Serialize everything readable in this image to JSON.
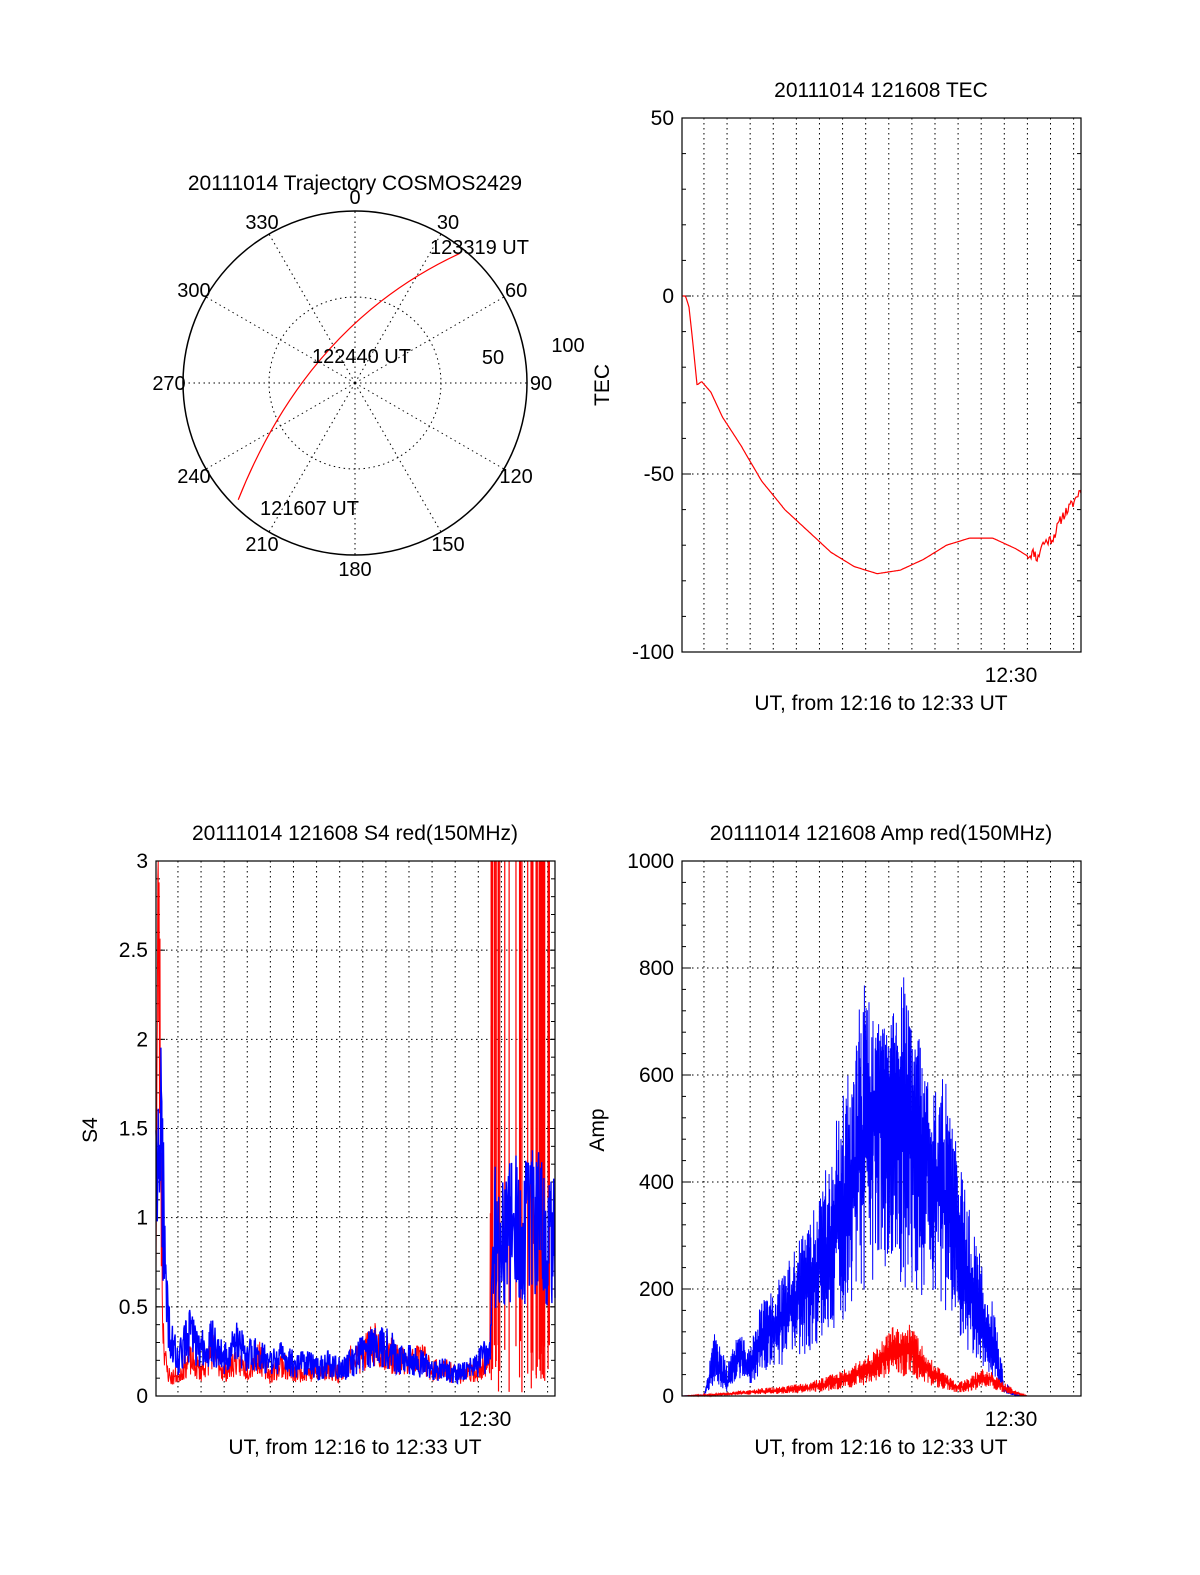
{
  "page": {
    "background": "#ffffff"
  },
  "colors": {
    "red": "#ff0000",
    "blue": "#0000ff",
    "axes": "#000000"
  },
  "polar": {
    "title": "20111014 Trajectory COSMOS2429",
    "angle_labels": [
      "0",
      "30",
      "60",
      "90",
      "120",
      "150",
      "180",
      "210",
      "240",
      "270",
      "300",
      "330"
    ],
    "angle_values": [
      0,
      30,
      60,
      90,
      120,
      150,
      180,
      210,
      240,
      270,
      300,
      330
    ],
    "radial_labels": [
      "50",
      "100"
    ],
    "radial_values": [
      50,
      100
    ],
    "time_labels": [
      "123319 UT",
      "122440 UT",
      "121607 UT"
    ],
    "trajectory": {
      "start": {
        "az": -135,
        "r": 96
      },
      "control": {
        "az": -38,
        "r": 44
      },
      "end": {
        "az": 39,
        "r": 97
      }
    }
  },
  "chart_data": [
    {
      "type": "line",
      "title": "20111014 121608 TEC",
      "xlabel": "UT, from 12:16 to 12:33 UT",
      "ylabel": "TEC",
      "ylim": [
        -100,
        50
      ],
      "yticks": [
        -100,
        -50,
        0,
        50
      ],
      "ytick_labels": [
        "-100",
        "-50",
        "0",
        "50"
      ],
      "xlim_minutes": [
        16.05,
        33.32
      ],
      "xticks": [
        30
      ],
      "xtick_labels": [
        "12:30"
      ],
      "grid": true,
      "series": [
        {
          "color": "#ff0000",
          "x": [
            16.05,
            16.2,
            16.35,
            16.5,
            16.7,
            16.9,
            17.3,
            17.8,
            18.6,
            19.5,
            20.5,
            21.5,
            22.5,
            23.5,
            24.5,
            25.5,
            26.5,
            27.5,
            28.5,
            29.5,
            30.5,
            31.0,
            31.3,
            31.45,
            31.6,
            31.8,
            32.1,
            32.5,
            33.0,
            33.32
          ],
          "y": [
            0,
            0,
            -3,
            -12,
            -25,
            -24,
            -27,
            -34,
            -42,
            -52,
            -60,
            -66,
            -72,
            -76,
            -78,
            -77,
            -74,
            -70,
            -68,
            -68,
            -71,
            -73,
            -72,
            -74,
            -70,
            -69,
            -68,
            -62,
            -58,
            -54
          ]
        }
      ]
    },
    {
      "type": "line",
      "title": "20111014 121608 S4 red(150MHz)",
      "xlabel": "UT, from 12:16 to 12:33 UT",
      "ylabel": "S4",
      "ylim": [
        0,
        3
      ],
      "yticks": [
        0,
        0.5,
        1,
        1.5,
        2,
        2.5,
        3
      ],
      "ytick_labels": [
        "0",
        "0.5",
        "1",
        "1.5",
        "2",
        "2.5",
        "3"
      ],
      "xlim_minutes": [
        16.05,
        33.32
      ],
      "xticks": [
        30
      ],
      "xtick_labels": [
        "12:30"
      ],
      "grid": true,
      "series": [
        {
          "color": "#ff0000",
          "x": [
            16.05,
            16.15,
            16.25,
            16.35,
            16.5,
            16.7,
            17.0,
            17.5,
            18.0,
            18.5,
            19.0,
            19.5,
            20.0,
            20.5,
            21.0,
            21.5,
            22.0,
            22.5,
            23.0,
            23.5,
            24.0,
            24.5,
            25.0,
            25.5,
            26.0,
            26.5,
            27.0,
            27.5,
            28.0,
            28.5,
            29.0,
            29.5,
            30.0,
            30.5,
            30.6
          ],
          "y": [
            0.9,
            2.9,
            1.5,
            0.4,
            0.15,
            0.1,
            0.12,
            0.2,
            0.14,
            0.25,
            0.13,
            0.2,
            0.15,
            0.22,
            0.12,
            0.18,
            0.12,
            0.15,
            0.12,
            0.16,
            0.13,
            0.2,
            0.22,
            0.3,
            0.25,
            0.2,
            0.18,
            0.22,
            0.15,
            0.15,
            0.12,
            0.12,
            0.15,
            0.2,
            3
          ]
        },
        {
          "color": "#0000ff",
          "x": [
            16.05,
            16.2,
            16.35,
            16.5,
            16.7,
            17.0,
            17.5,
            18.0,
            18.5,
            19.0,
            19.5,
            20.0,
            20.5,
            21.0,
            21.5,
            22.0,
            22.5,
            23.0,
            23.5,
            24.0,
            24.5,
            25.0,
            25.5,
            26.0,
            26.5,
            27.0,
            27.5,
            28.0,
            28.5,
            29.0,
            29.5,
            30.0,
            30.5,
            30.7,
            31.0,
            31.5,
            32.0,
            32.5,
            33.0,
            33.32
          ],
          "y": [
            1.2,
            1.6,
            1.1,
            0.5,
            0.3,
            0.2,
            0.35,
            0.25,
            0.3,
            0.2,
            0.3,
            0.22,
            0.25,
            0.18,
            0.22,
            0.18,
            0.2,
            0.15,
            0.18,
            0.15,
            0.18,
            0.25,
            0.3,
            0.28,
            0.22,
            0.2,
            0.18,
            0.15,
            0.15,
            0.12,
            0.15,
            0.18,
            0.25,
            0.9,
            0.85,
            0.95,
            0.9,
            1.0,
            0.9,
            0.85
          ]
        }
      ]
    },
    {
      "type": "line",
      "title": "20111014 121608 Amp red(150MHz)",
      "xlabel": "UT, from 12:16 to 12:33 UT",
      "ylabel": "Amp",
      "ylim": [
        0,
        1000
      ],
      "yticks": [
        0,
        200,
        400,
        600,
        800,
        1000
      ],
      "ytick_labels": [
        "0",
        "200",
        "400",
        "600",
        "800",
        "1000"
      ],
      "xlim_minutes": [
        16.05,
        33.32
      ],
      "xticks": [
        30
      ],
      "xtick_labels": [
        "12:30"
      ],
      "grid": true,
      "series": [
        {
          "color": "#0000ff",
          "x": [
            16.05,
            17.0,
            17.5,
            18.0,
            18.5,
            19.0,
            19.5,
            20.0,
            20.5,
            21.0,
            21.5,
            22.0,
            22.5,
            23.0,
            23.5,
            24.0,
            24.5,
            25.0,
            25.5,
            26.0,
            26.5,
            27.0,
            27.5,
            28.0,
            28.5,
            29.0,
            29.5,
            30.0,
            30.5,
            31.0,
            31.5,
            32.0,
            32.5,
            33.0,
            33.32
          ],
          "y": [
            0,
            2,
            60,
            20,
            80,
            50,
            110,
            120,
            150,
            180,
            200,
            250,
            300,
            350,
            420,
            480,
            550,
            600,
            520,
            480,
            450,
            430,
            350,
            280,
            200,
            150,
            80,
            10,
            2,
            0,
            0,
            0,
            0,
            0,
            0
          ],
          "envelope": [
            0,
            2,
            130,
            60,
            120,
            90,
            180,
            200,
            240,
            280,
            330,
            380,
            480,
            560,
            680,
            780,
            700,
            680,
            820,
            700,
            650,
            580,
            600,
            450,
            350,
            260,
            180,
            30,
            2,
            0,
            0,
            0,
            0,
            0,
            0
          ]
        },
        {
          "color": "#ff0000",
          "x": [
            16.05,
            17.5,
            18.5,
            19.5,
            20.5,
            21.5,
            22.5,
            23.5,
            24.5,
            25.0,
            25.5,
            26.0,
            26.5,
            27.0,
            27.5,
            28.0,
            28.5,
            29.0,
            29.5,
            30.0,
            30.5,
            31.0,
            31.5,
            32.0,
            33.32
          ],
          "y": [
            0,
            2,
            5,
            8,
            10,
            15,
            25,
            40,
            60,
            80,
            90,
            85,
            60,
            40,
            25,
            15,
            20,
            35,
            30,
            15,
            5,
            0,
            0,
            0,
            0
          ],
          "envelope": [
            0,
            5,
            10,
            15,
            20,
            25,
            40,
            60,
            90,
            120,
            150,
            130,
            90,
            60,
            40,
            25,
            35,
            55,
            45,
            25,
            10,
            0,
            0,
            0,
            0
          ]
        }
      ]
    }
  ]
}
